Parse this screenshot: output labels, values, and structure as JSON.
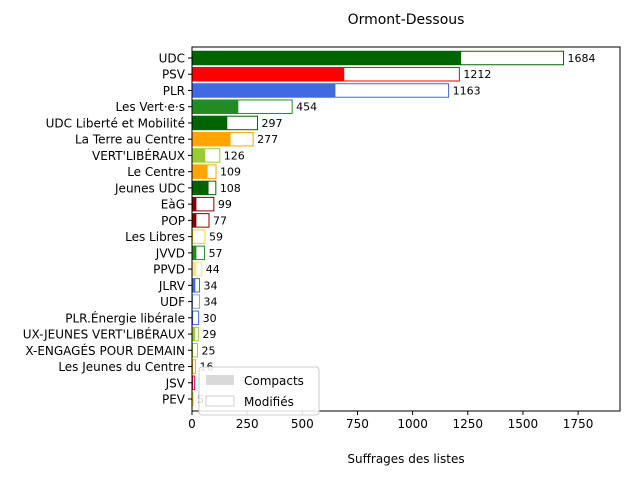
{
  "chart_data": {
    "type": "bar",
    "orientation": "horizontal",
    "title": "Ormont-Dessous",
    "xlabel": "Suffrages des listes",
    "ylabel": "",
    "xlim": [
      0,
      1940
    ],
    "xticks": [
      0,
      250,
      500,
      750,
      1000,
      1250,
      1500,
      1750
    ],
    "grid": false,
    "legend_position": "lower-left",
    "legend": [
      {
        "name": "Compacts",
        "swatch": "#d9d9d9",
        "style": "filled"
      },
      {
        "name": "Modifiés",
        "swatch": "#ffffff",
        "style": "outline"
      }
    ],
    "categories": [
      "UDC",
      "PSV",
      "PLR",
      "Les Vert·e·s",
      "UDC Liberté et Mobilité",
      "La Terre au Centre",
      "VERT'LIBÉRAUX",
      "Le Centre",
      "Jeunes UDC",
      "EàG",
      "POP",
      "Les Libres",
      "JVVD",
      "PPVD",
      "JLRV",
      "UDF",
      "PLR.Énergie libérale",
      "UX-JEUNES VERT'LIBÉRAUX",
      "X-ENGAGÉS POUR DEMAIN",
      "Les Jeunes du Centre",
      "JSV",
      "PEV"
    ],
    "totals": [
      1684,
      1212,
      1163,
      454,
      297,
      277,
      126,
      109,
      108,
      99,
      77,
      59,
      57,
      44,
      34,
      34,
      30,
      29,
      25,
      16,
      12,
      5
    ],
    "total_labels": [
      "1684",
      "1212",
      "1163",
      "454",
      "297",
      "277",
      "126",
      "109",
      "108",
      "99",
      "77",
      "59",
      "57",
      "44",
      "34",
      "34",
      "30",
      "29",
      "25",
      "16",
      "",
      "5"
    ],
    "compacts": [
      1220,
      690,
      650,
      210,
      160,
      175,
      60,
      70,
      75,
      20,
      20,
      5,
      20,
      20,
      15,
      5,
      5,
      15,
      5,
      5,
      5,
      0
    ],
    "colors": [
      "#006400",
      "#ff0000",
      "#4169e1",
      "#228b22",
      "#006400",
      "#ffa500",
      "#9acd32",
      "#ffa500",
      "#006400",
      "#8b0000",
      "#8b0000",
      "#ffd700",
      "#228b22",
      "#f0e68c",
      "#4169e1",
      "#87a8d0",
      "#4169e1",
      "#9acd32",
      "#9acd32",
      "#ffa500",
      "#dc143c",
      "#ffd700"
    ]
  }
}
